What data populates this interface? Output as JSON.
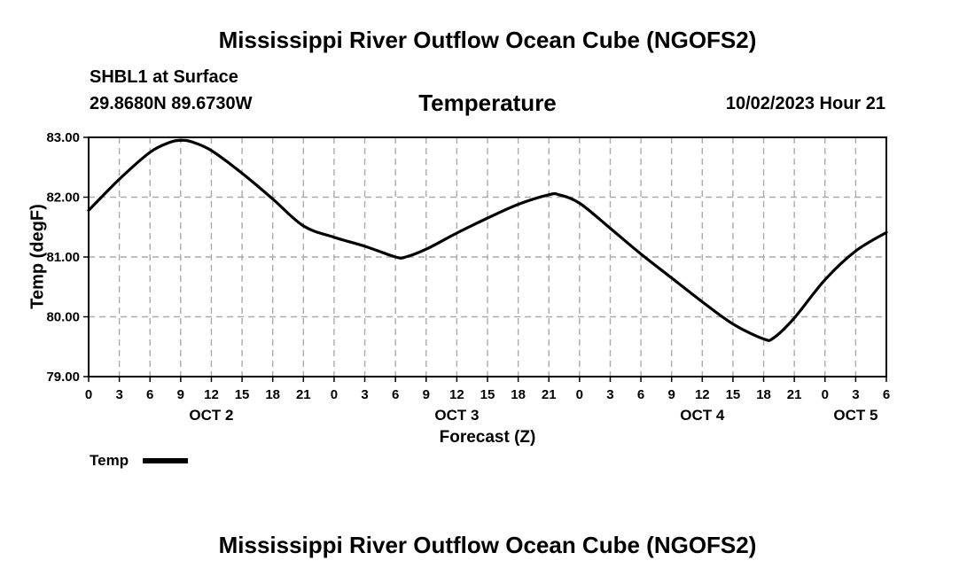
{
  "header": {
    "title": "Mississippi River Outflow Ocean Cube (NGOFS2)",
    "station": "SHBL1 at Surface",
    "coords": "29.8680N  89.6730W",
    "parameter": "Temperature",
    "datetime": "10/02/2023 Hour 21"
  },
  "footer": {
    "title": "Mississippi River Outflow Ocean Cube (NGOFS2)"
  },
  "legend": {
    "label": "Temp"
  },
  "chart_data": {
    "type": "line",
    "title": "Temperature",
    "xlabel": "Forecast (Z)",
    "ylabel": "Temp (degF)",
    "ylim": [
      79.0,
      83.0
    ],
    "xlim": [
      0,
      78
    ],
    "x_unit": "hours from 10/02/2023 00Z",
    "y_ticks": [
      "79.00",
      "80.00",
      "81.00",
      "82.00",
      "83.00"
    ],
    "x_ticks": [
      "0",
      "3",
      "6",
      "9",
      "12",
      "15",
      "18",
      "21",
      "0",
      "3",
      "6",
      "9",
      "12",
      "15",
      "18",
      "21",
      "0",
      "3",
      "6",
      "9",
      "12",
      "15",
      "18",
      "21",
      "0",
      "3",
      "6"
    ],
    "day_labels": [
      {
        "label": "OCT 2",
        "hour": 12
      },
      {
        "label": "OCT 3",
        "hour": 36
      },
      {
        "label": "OCT 4",
        "hour": 60
      },
      {
        "label": "OCT 5",
        "hour": 75
      }
    ],
    "grid": true,
    "series": [
      {
        "name": "Temp",
        "x": [
          0,
          3,
          6,
          8,
          9,
          10,
          12,
          15,
          18,
          21,
          24,
          27,
          30,
          31,
          33,
          36,
          39,
          42,
          45,
          46,
          48,
          51,
          54,
          57,
          60,
          63,
          66,
          67,
          69,
          72,
          75,
          78
        ],
        "values": [
          81.78,
          82.3,
          82.75,
          82.92,
          82.95,
          82.93,
          82.78,
          82.4,
          81.97,
          81.52,
          81.33,
          81.18,
          81.0,
          81.0,
          81.13,
          81.4,
          81.65,
          81.88,
          82.04,
          82.04,
          81.9,
          81.48,
          81.05,
          80.65,
          80.25,
          79.88,
          79.63,
          79.65,
          79.98,
          80.62,
          81.1,
          81.41
        ]
      }
    ]
  }
}
